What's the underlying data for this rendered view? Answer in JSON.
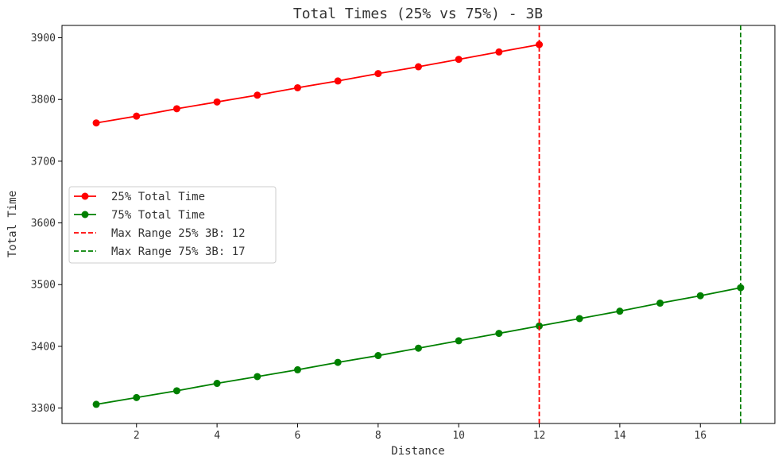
{
  "chart_data": {
    "type": "line",
    "title": "Total Times (25% vs 75%) - 3B",
    "xlabel": "Distance",
    "ylabel": "Total Time",
    "xlim": [
      0.15,
      17.85
    ],
    "ylim": [
      3275,
      3920
    ],
    "xticks": [
      2,
      4,
      6,
      8,
      10,
      12,
      14,
      16
    ],
    "yticks": [
      3300,
      3400,
      3500,
      3600,
      3700,
      3800,
      3900
    ],
    "grid": false,
    "legend_position": "center-left",
    "series": [
      {
        "name": "25% Total Time",
        "color": "#ff0000",
        "style": "solid",
        "marker": "circle",
        "x": [
          1,
          2,
          3,
          4,
          5,
          6,
          7,
          8,
          9,
          10,
          11,
          12
        ],
        "y": [
          3762,
          3773,
          3785,
          3796,
          3807,
          3819,
          3830,
          3842,
          3853,
          3865,
          3877,
          3889
        ]
      },
      {
        "name": "75% Total Time",
        "color": "#008000",
        "style": "solid",
        "marker": "circle",
        "x": [
          1,
          2,
          3,
          4,
          5,
          6,
          7,
          8,
          9,
          10,
          11,
          12,
          13,
          14,
          15,
          16,
          17
        ],
        "y": [
          3306,
          3317,
          3328,
          3340,
          3351,
          3362,
          3374,
          3385,
          3397,
          3409,
          3421,
          3433,
          3445,
          3457,
          3470,
          3482,
          3495
        ]
      }
    ],
    "vlines": [
      {
        "name": "Max Range 25% 3B: 12",
        "x": 12,
        "color": "#ff0000",
        "style": "dashed"
      },
      {
        "name": "Max Range 75% 3B: 17",
        "x": 17,
        "color": "#008000",
        "style": "dashed"
      }
    ]
  }
}
